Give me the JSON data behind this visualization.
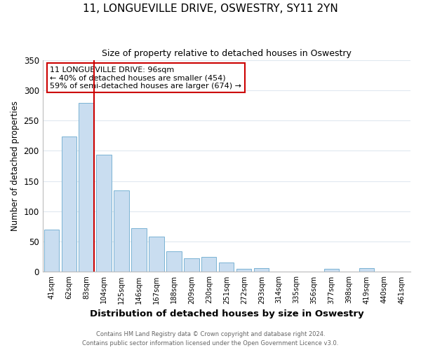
{
  "title": "11, LONGUEVILLE DRIVE, OSWESTRY, SY11 2YN",
  "subtitle": "Size of property relative to detached houses in Oswestry",
  "xlabel": "Distribution of detached houses by size in Oswestry",
  "ylabel": "Number of detached properties",
  "bar_labels": [
    "41sqm",
    "62sqm",
    "83sqm",
    "104sqm",
    "125sqm",
    "146sqm",
    "167sqm",
    "188sqm",
    "209sqm",
    "230sqm",
    "251sqm",
    "272sqm",
    "293sqm",
    "314sqm",
    "335sqm",
    "356sqm",
    "377sqm",
    "398sqm",
    "419sqm",
    "440sqm",
    "461sqm"
  ],
  "bar_values": [
    70,
    223,
    279,
    193,
    134,
    72,
    58,
    34,
    23,
    25,
    15,
    5,
    6,
    0,
    0,
    0,
    5,
    0,
    6,
    0,
    1
  ],
  "bar_color": "#c9ddf0",
  "bar_edge_color": "#7ab3d3",
  "highlight_bar_index": 2,
  "highlight_line_color": "#cc0000",
  "ylim": [
    0,
    350
  ],
  "yticks": [
    0,
    50,
    100,
    150,
    200,
    250,
    300,
    350
  ],
  "annotation_title": "11 LONGUEVILLE DRIVE: 96sqm",
  "annotation_line1": "← 40% of detached houses are smaller (454)",
  "annotation_line2": "59% of semi-detached houses are larger (674) →",
  "annotation_box_edge": "#cc0000",
  "footer_line1": "Contains HM Land Registry data © Crown copyright and database right 2024.",
  "footer_line2": "Contains public sector information licensed under the Open Government Licence v3.0.",
  "background_color": "#ffffff",
  "grid_color": "#e0e8f0"
}
